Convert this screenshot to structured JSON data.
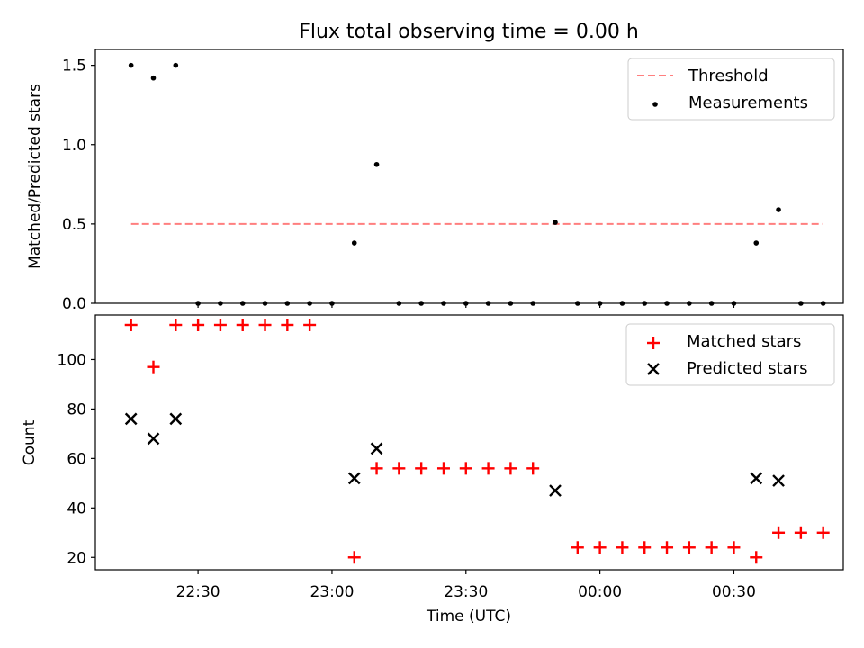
{
  "chart_data": {
    "type": "scatter",
    "title": "Flux total observing time = 0.00 h",
    "xlabel": "Time (UTC)",
    "x_minutes": [
      10,
      15,
      20,
      25,
      30,
      35,
      40,
      45,
      50,
      55,
      60,
      65,
      70,
      75,
      80,
      85,
      90,
      95,
      100,
      105,
      110,
      115,
      120,
      125,
      130,
      135,
      140,
      145,
      150,
      155,
      160,
      165
    ],
    "x_ticks": [
      {
        "minute": 25,
        "label": "22:30"
      },
      {
        "minute": 55,
        "label": "23:00"
      },
      {
        "minute": 85,
        "label": "23:30"
      },
      {
        "minute": 115,
        "label": "00:00"
      },
      {
        "minute": 145,
        "label": "00:30"
      }
    ],
    "xlim": [
      2,
      169.5
    ],
    "top_panel": {
      "ylabel": "Matched/Predicted stars",
      "ylim": [
        0,
        1.6
      ],
      "yticks": [
        {
          "value": 0.0,
          "label": "0.0"
        },
        {
          "value": 0.5,
          "label": "0.5"
        },
        {
          "value": 1.0,
          "label": "1.0"
        },
        {
          "value": 1.5,
          "label": "1.5"
        }
      ],
      "threshold": {
        "name": "Threshold",
        "value": 0.5,
        "x_range": [
          10,
          165
        ],
        "color": "#ff7f7f"
      },
      "series": [
        {
          "name": "Measurements",
          "color": "#000000",
          "values": [
            1.5,
            1.42,
            1.5,
            0,
            0,
            0,
            0,
            0,
            0,
            0,
            0.38,
            0.875,
            0,
            0,
            0,
            0,
            0,
            0,
            0,
            0.51,
            0,
            0,
            0,
            0,
            0,
            0,
            0,
            0,
            0.38,
            0.59,
            0,
            0
          ]
        }
      ]
    },
    "bottom_panel": {
      "ylabel": "Count",
      "ylim": [
        15,
        118
      ],
      "yticks": [
        {
          "value": 20,
          "label": "20"
        },
        {
          "value": 40,
          "label": "40"
        },
        {
          "value": 60,
          "label": "60"
        },
        {
          "value": 80,
          "label": "80"
        },
        {
          "value": 100,
          "label": "100"
        }
      ],
      "series": [
        {
          "name": "Matched stars",
          "marker": "plus",
          "color": "#ff0000",
          "values": [
            114,
            97,
            114,
            114,
            114,
            114,
            114,
            114,
            114,
            null,
            20,
            56,
            56,
            56,
            56,
            56,
            56,
            56,
            56,
            null,
            24,
            24,
            24,
            24,
            24,
            24,
            24,
            24,
            20,
            30,
            30,
            30
          ]
        },
        {
          "name": "Predicted stars",
          "marker": "x",
          "color": "#000000",
          "values": [
            76,
            68,
            76,
            null,
            null,
            null,
            null,
            null,
            null,
            null,
            52,
            64,
            null,
            null,
            null,
            null,
            null,
            null,
            null,
            47,
            null,
            null,
            null,
            null,
            null,
            null,
            null,
            null,
            52,
            51,
            null,
            null
          ]
        }
      ]
    }
  }
}
